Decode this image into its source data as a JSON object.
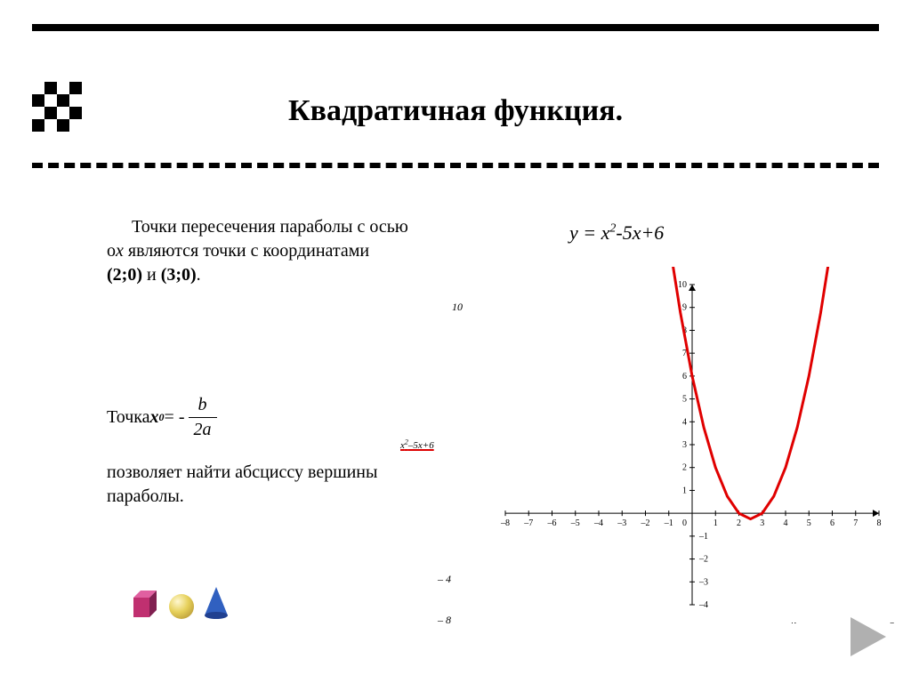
{
  "title": "Квадратичная функция.",
  "paragraph1_pre": "Точки пересечения параболы  с  осью о",
  "paragraph1_ox_var": "х",
  "paragraph1_mid": " являются точки с координатами ",
  "paragraph1_pt1": "(2;0)",
  "paragraph1_and": " и ",
  "paragraph1_pt2": "(3;0)",
  "paragraph1_end": ".",
  "paragraph2_pre": "Точка ",
  "paragraph2_x": "х",
  "paragraph2_sub": "0",
  "paragraph2_eq": " = - ",
  "formula_num": "b",
  "formula_den": "2a",
  "paragraph3": "позволяет найти абсциссу вершины параболы.",
  "equation_y": "у = х",
  "equation_exp": "2",
  "equation_tail": "-5х+6",
  "mini_10": "10",
  "mini_formula": "х",
  "mini_formula_exp": "2",
  "mini_formula_tail": "–5х+6",
  "mini_m4": "– 4",
  "mini_m8": "– 8",
  "mini_x": "х",
  "mini_8r": "8",
  "chart": {
    "type": "line",
    "title_fontsize": 10,
    "background_color": "#ffffff",
    "axis_color": "#000000",
    "grid_color": "#e8e8e8",
    "tick_font_size": 10,
    "tick_color": "#000000",
    "xlim": [
      -8,
      8
    ],
    "ylim": [
      -4,
      10
    ],
    "xtick_step": 1,
    "ytick_step": 1,
    "xticks": [
      -8,
      -7,
      -6,
      -5,
      -4,
      -3,
      -2,
      -1,
      0,
      1,
      2,
      3,
      4,
      5,
      6,
      7,
      8
    ],
    "yticks": [
      -4,
      -3,
      -2,
      -1,
      1,
      2,
      3,
      4,
      5,
      6,
      7,
      8,
      9,
      10
    ],
    "line_color": "#e00000",
    "line_width": 3,
    "points": [
      [
        -0.95,
        11.65
      ],
      [
        -0.5,
        8.75
      ],
      [
        0,
        6
      ],
      [
        0.5,
        3.75
      ],
      [
        1,
        2
      ],
      [
        1.5,
        0.75
      ],
      [
        2,
        0
      ],
      [
        2.5,
        -0.25
      ],
      [
        3,
        0
      ],
      [
        3.5,
        0.75
      ],
      [
        4,
        2
      ],
      [
        4.5,
        3.75
      ],
      [
        5,
        6
      ],
      [
        5.5,
        8.75
      ],
      [
        5.95,
        11.65
      ]
    ]
  },
  "colors": {
    "text": "#000000",
    "rule": "#000000",
    "accent_red": "#e00000",
    "nav_gray": "#b0b0b0",
    "cube_magenta": "#c03070",
    "sphere_yellow": "#e6d05a",
    "cone_blue": "#3060c0"
  }
}
